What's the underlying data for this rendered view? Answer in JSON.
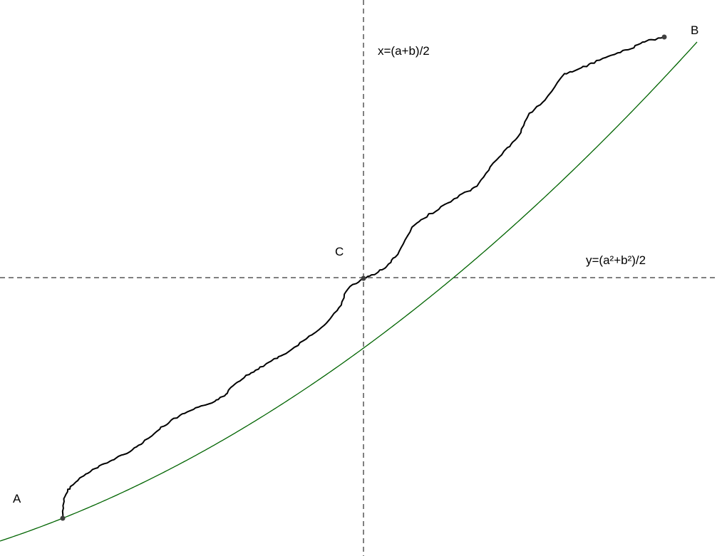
{
  "diagram": {
    "points": [
      {
        "id": "A",
        "label": "A"
      },
      {
        "id": "B",
        "label": "B"
      },
      {
        "id": "C",
        "label": "C"
      }
    ],
    "lines": {
      "vertical_label": "x=(a+b)/2",
      "horizontal_label": "y=(a²+b²)/2"
    },
    "colors": {
      "parabola": "#006400",
      "rough_path": "#000000",
      "dashed_lines": "#000000",
      "points": "#404040"
    }
  }
}
